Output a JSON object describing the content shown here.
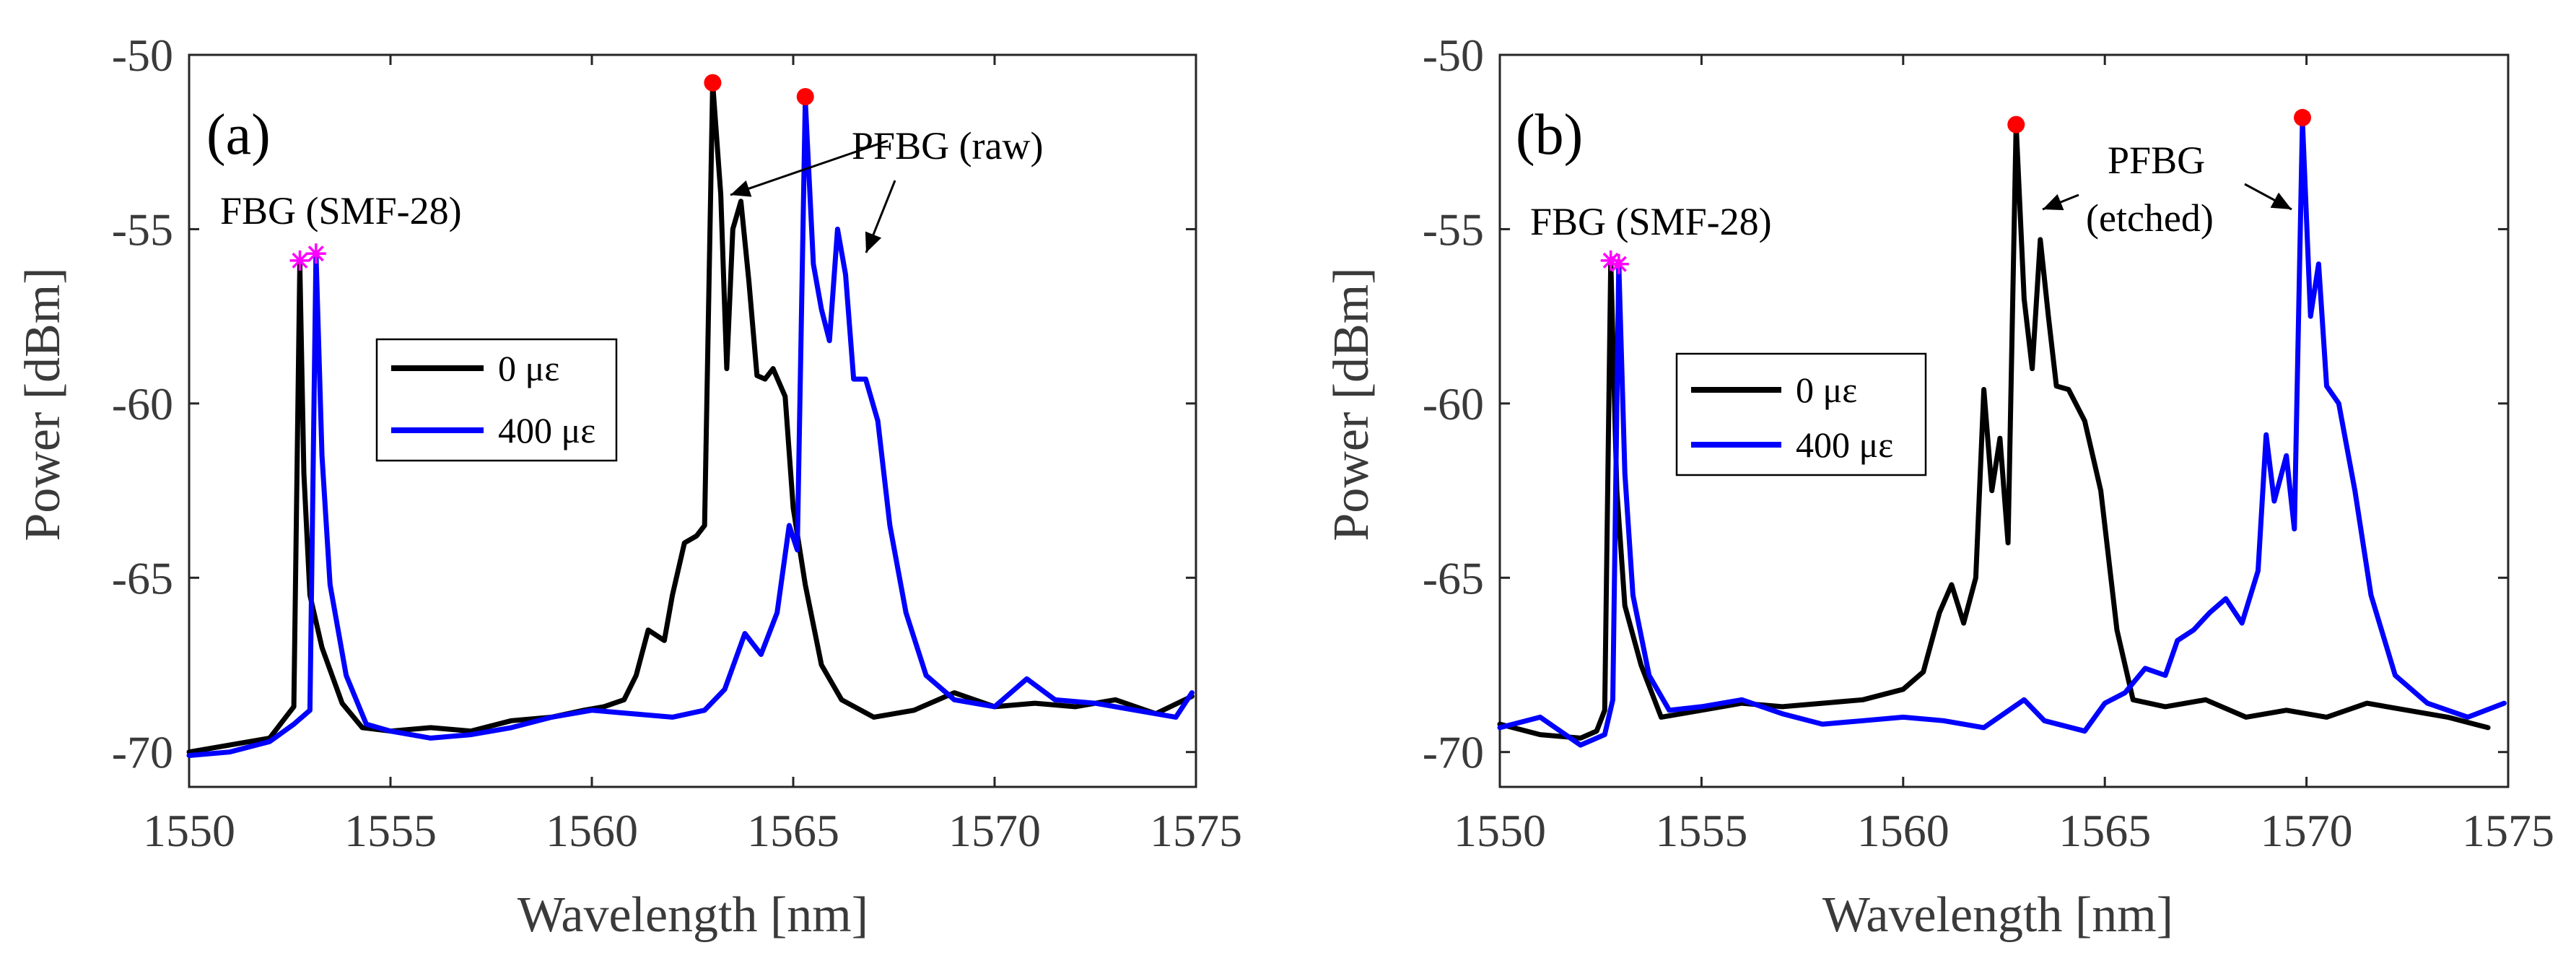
{
  "chart_data": [
    {
      "type": "line",
      "panel_label": "(a)",
      "xlabel": "Wavelength [nm]",
      "ylabel": "Power [dBm]",
      "xlim": [
        1550,
        1575
      ],
      "ylim": [
        -71,
        -50
      ],
      "xticks": [
        1550,
        1555,
        1560,
        1565,
        1570,
        1575
      ],
      "yticks": [
        -50,
        -55,
        -60,
        -65,
        -70
      ],
      "annotations": [
        {
          "text": "FBG (SMF-28)",
          "x": 1550.8,
          "y": -54.5
        },
        {
          "text": "PFBG (raw)",
          "x": 1566.8,
          "y": -52.4
        }
      ],
      "legend": {
        "position": "left-middle"
      },
      "series": [
        {
          "name": "0 με",
          "color": "#000000",
          "points": [
            [
              1550,
              -70.0
            ],
            [
              1551,
              -69.8
            ],
            [
              1552,
              -69.6
            ],
            [
              1552.4,
              -69.0
            ],
            [
              1552.6,
              -68.7
            ],
            [
              1552.75,
              -56.0
            ],
            [
              1552.85,
              -62.0
            ],
            [
              1553.0,
              -65.5
            ],
            [
              1553.3,
              -67.0
            ],
            [
              1553.8,
              -68.6
            ],
            [
              1554.3,
              -69.3
            ],
            [
              1555,
              -69.4
            ],
            [
              1556,
              -69.3
            ],
            [
              1557,
              -69.4
            ],
            [
              1558,
              -69.1
            ],
            [
              1559,
              -69.0
            ],
            [
              1559.8,
              -68.8
            ],
            [
              1560.3,
              -68.7
            ],
            [
              1560.8,
              -68.5
            ],
            [
              1561.1,
              -67.8
            ],
            [
              1561.4,
              -66.5
            ],
            [
              1561.8,
              -66.8
            ],
            [
              1562.0,
              -65.5
            ],
            [
              1562.3,
              -64.0
            ],
            [
              1562.6,
              -63.8
            ],
            [
              1562.8,
              -63.5
            ],
            [
              1563.0,
              -50.8
            ],
            [
              1563.2,
              -54.0
            ],
            [
              1563.35,
              -59.0
            ],
            [
              1563.5,
              -55.0
            ],
            [
              1563.7,
              -54.2
            ],
            [
              1563.9,
              -56.5
            ],
            [
              1564.1,
              -59.2
            ],
            [
              1564.3,
              -59.3
            ],
            [
              1564.5,
              -59.0
            ],
            [
              1564.8,
              -59.8
            ],
            [
              1565.0,
              -63.0
            ],
            [
              1565.3,
              -65.2
            ],
            [
              1565.7,
              -67.5
            ],
            [
              1566.2,
              -68.5
            ],
            [
              1567,
              -69.0
            ],
            [
              1568,
              -68.8
            ],
            [
              1569,
              -68.3
            ],
            [
              1570,
              -68.7
            ],
            [
              1571,
              -68.6
            ],
            [
              1572,
              -68.7
            ],
            [
              1573,
              -68.5
            ],
            [
              1574,
              -68.9
            ],
            [
              1574.9,
              -68.4
            ]
          ]
        },
        {
          "name": "400 με",
          "color": "#0000ff",
          "points": [
            [
              1550,
              -70.1
            ],
            [
              1551,
              -70.0
            ],
            [
              1552,
              -69.7
            ],
            [
              1552.6,
              -69.2
            ],
            [
              1553.0,
              -68.8
            ],
            [
              1553.15,
              -55.7
            ],
            [
              1553.3,
              -61.5
            ],
            [
              1553.5,
              -65.2
            ],
            [
              1553.9,
              -67.8
            ],
            [
              1554.4,
              -69.2
            ],
            [
              1555,
              -69.4
            ],
            [
              1556,
              -69.6
            ],
            [
              1557,
              -69.5
            ],
            [
              1558,
              -69.3
            ],
            [
              1559,
              -69.0
            ],
            [
              1560,
              -68.8
            ],
            [
              1561,
              -68.9
            ],
            [
              1562,
              -69.0
            ],
            [
              1562.8,
              -68.8
            ],
            [
              1563.3,
              -68.2
            ],
            [
              1563.8,
              -66.6
            ],
            [
              1564.2,
              -67.2
            ],
            [
              1564.6,
              -66.0
            ],
            [
              1564.9,
              -63.5
            ],
            [
              1565.1,
              -64.2
            ],
            [
              1565.3,
              -51.3
            ],
            [
              1565.5,
              -56.0
            ],
            [
              1565.7,
              -57.3
            ],
            [
              1565.9,
              -58.2
            ],
            [
              1566.1,
              -55.0
            ],
            [
              1566.3,
              -56.3
            ],
            [
              1566.5,
              -59.3
            ],
            [
              1566.8,
              -59.3
            ],
            [
              1567.1,
              -60.5
            ],
            [
              1567.4,
              -63.5
            ],
            [
              1567.8,
              -66.0
            ],
            [
              1568.3,
              -67.8
            ],
            [
              1569,
              -68.5
            ],
            [
              1570,
              -68.7
            ],
            [
              1570.8,
              -67.9
            ],
            [
              1571.5,
              -68.5
            ],
            [
              1572.5,
              -68.6
            ],
            [
              1573.5,
              -68.8
            ],
            [
              1574.5,
              -69.0
            ],
            [
              1574.9,
              -68.3
            ]
          ]
        }
      ],
      "peak_markers": [
        {
          "type": "asterisk",
          "color": "#ff00ff",
          "x": 1552.75,
          "y": -55.9
        },
        {
          "type": "asterisk",
          "color": "#ff00ff",
          "x": 1553.15,
          "y": -55.7
        },
        {
          "type": "dot",
          "color": "#ff0000",
          "x": 1563.0,
          "y": -50.8
        },
        {
          "type": "dot",
          "color": "#ff0000",
          "x": 1565.3,
          "y": -51.2
        }
      ]
    },
    {
      "type": "line",
      "panel_label": "(b)",
      "xlabel": "Wavelength [nm]",
      "ylabel": "Power [dBm]",
      "xlim": [
        1550,
        1575
      ],
      "ylim": [
        -71,
        -50
      ],
      "xticks": [
        1550,
        1555,
        1560,
        1565,
        1570,
        1575
      ],
      "yticks": [
        -50,
        -55,
        -60,
        -65,
        -70
      ],
      "annotations": [
        {
          "text": "FBG (SMF-28)",
          "x": 1550.8,
          "y": -54.5
        },
        {
          "text": "PFBG",
          "x": 1566.8,
          "y": -53.4
        },
        {
          "text": "(etched)",
          "x": 1566.8,
          "y": -55.3
        }
      ],
      "legend": {
        "position": "left-middle"
      },
      "series": [
        {
          "name": "0 με",
          "color": "#000000",
          "points": [
            [
              1550,
              -69.2
            ],
            [
              1551,
              -69.5
            ],
            [
              1552,
              -69.6
            ],
            [
              1552.4,
              -69.4
            ],
            [
              1552.6,
              -68.8
            ],
            [
              1552.75,
              -55.9
            ],
            [
              1552.9,
              -62.5
            ],
            [
              1553.1,
              -65.8
            ],
            [
              1553.5,
              -67.5
            ],
            [
              1554,
              -69.0
            ],
            [
              1555,
              -68.8
            ],
            [
              1556,
              -68.6
            ],
            [
              1557,
              -68.7
            ],
            [
              1558,
              -68.6
            ],
            [
              1559,
              -68.5
            ],
            [
              1560,
              -68.2
            ],
            [
              1560.5,
              -67.7
            ],
            [
              1560.9,
              -66.0
            ],
            [
              1561.2,
              -65.2
            ],
            [
              1561.5,
              -66.3
            ],
            [
              1561.8,
              -65.0
            ],
            [
              1562.0,
              -59.6
            ],
            [
              1562.2,
              -62.5
            ],
            [
              1562.4,
              -61.0
            ],
            [
              1562.6,
              -64.0
            ],
            [
              1562.8,
              -52.0
            ],
            [
              1563.0,
              -57.0
            ],
            [
              1563.2,
              -59.0
            ],
            [
              1563.4,
              -55.3
            ],
            [
              1563.6,
              -57.5
            ],
            [
              1563.8,
              -59.5
            ],
            [
              1564.1,
              -59.6
            ],
            [
              1564.5,
              -60.5
            ],
            [
              1564.9,
              -62.5
            ],
            [
              1565.3,
              -66.5
            ],
            [
              1565.7,
              -68.5
            ],
            [
              1566.5,
              -68.7
            ],
            [
              1567.5,
              -68.5
            ],
            [
              1568.5,
              -69.0
            ],
            [
              1569.5,
              -68.8
            ],
            [
              1570.5,
              -69.0
            ],
            [
              1571.5,
              -68.6
            ],
            [
              1572.5,
              -68.8
            ],
            [
              1573.5,
              -69.0
            ],
            [
              1574.5,
              -69.3
            ]
          ]
        },
        {
          "name": "400 με",
          "color": "#0000ff",
          "points": [
            [
              1550,
              -69.3
            ],
            [
              1551,
              -69.0
            ],
            [
              1552,
              -69.8
            ],
            [
              1552.6,
              -69.5
            ],
            [
              1552.8,
              -68.5
            ],
            [
              1552.95,
              -56.0
            ],
            [
              1553.1,
              -62.0
            ],
            [
              1553.3,
              -65.5
            ],
            [
              1553.7,
              -67.8
            ],
            [
              1554.2,
              -68.8
            ],
            [
              1555,
              -68.7
            ],
            [
              1556,
              -68.5
            ],
            [
              1557,
              -68.9
            ],
            [
              1558,
              -69.2
            ],
            [
              1559,
              -69.1
            ],
            [
              1560,
              -69.0
            ],
            [
              1561,
              -69.1
            ],
            [
              1562,
              -69.3
            ],
            [
              1563,
              -68.5
            ],
            [
              1563.5,
              -69.1
            ],
            [
              1564.5,
              -69.4
            ],
            [
              1565,
              -68.6
            ],
            [
              1565.5,
              -68.3
            ],
            [
              1566,
              -67.6
            ],
            [
              1566.5,
              -67.8
            ],
            [
              1566.8,
              -66.8
            ],
            [
              1567.2,
              -66.5
            ],
            [
              1567.6,
              -66.0
            ],
            [
              1568.0,
              -65.6
            ],
            [
              1568.4,
              -66.3
            ],
            [
              1568.8,
              -64.8
            ],
            [
              1569.0,
              -60.9
            ],
            [
              1569.2,
              -62.8
            ],
            [
              1569.5,
              -61.5
            ],
            [
              1569.7,
              -63.6
            ],
            [
              1569.9,
              -51.9
            ],
            [
              1570.1,
              -57.5
            ],
            [
              1570.3,
              -56.0
            ],
            [
              1570.5,
              -59.5
            ],
            [
              1570.8,
              -60.0
            ],
            [
              1571.2,
              -62.5
            ],
            [
              1571.6,
              -65.5
            ],
            [
              1572.2,
              -67.8
            ],
            [
              1573,
              -68.6
            ],
            [
              1574,
              -69.0
            ],
            [
              1574.9,
              -68.6
            ]
          ]
        }
      ],
      "peak_markers": [
        {
          "type": "asterisk",
          "color": "#ff00ff",
          "x": 1552.75,
          "y": -55.9
        },
        {
          "type": "asterisk",
          "color": "#ff00ff",
          "x": 1552.95,
          "y": -56.0
        },
        {
          "type": "dot",
          "color": "#ff0000",
          "x": 1562.8,
          "y": -52.0
        },
        {
          "type": "dot",
          "color": "#ff0000",
          "x": 1569.9,
          "y": -51.8
        }
      ]
    }
  ]
}
